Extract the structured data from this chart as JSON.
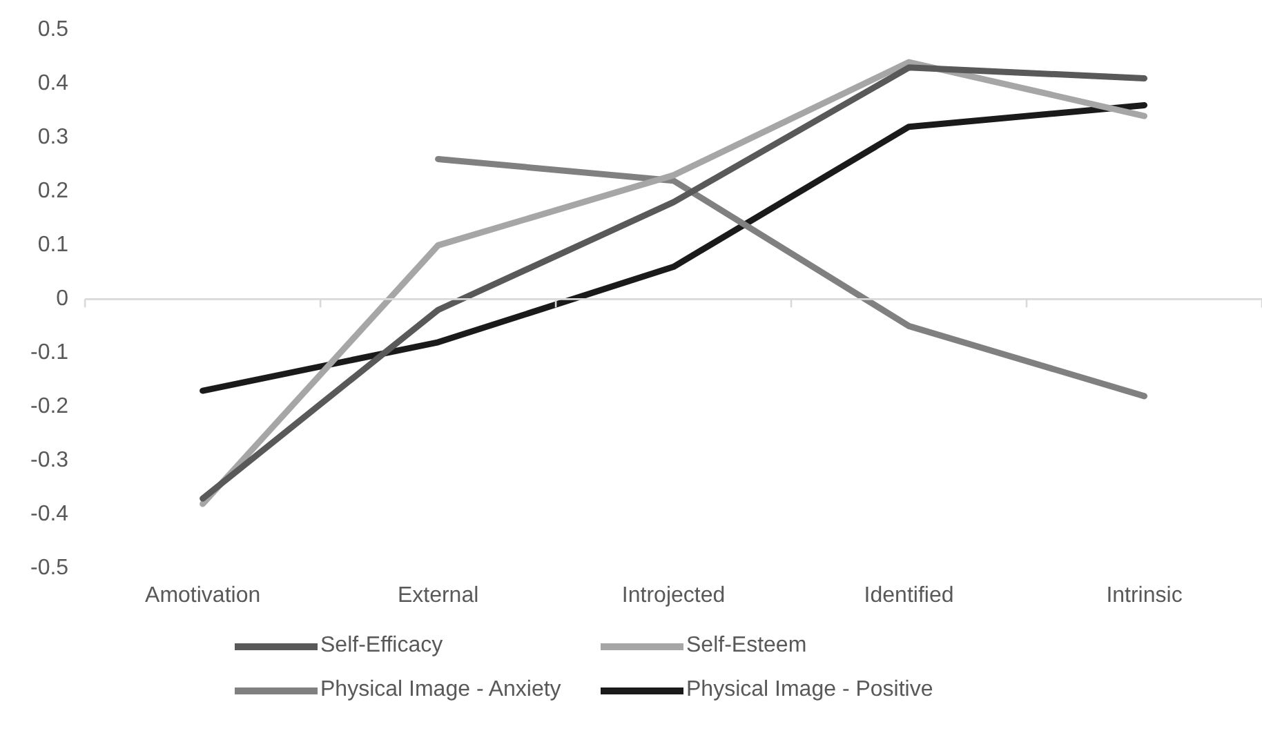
{
  "chart_data": {
    "type": "line",
    "categories": [
      "Amotivation",
      "External",
      "Introjected",
      "Identified",
      "Intrinsic"
    ],
    "series": [
      {
        "name": "Self-Efficacy",
        "color": "#595959",
        "values": [
          -0.37,
          -0.02,
          0.18,
          0.43,
          0.41
        ]
      },
      {
        "name": "Self-Esteem",
        "color": "#a6a6a6",
        "values": [
          -0.38,
          0.1,
          0.23,
          0.44,
          0.34
        ]
      },
      {
        "name": "Physical Image - Anxiety",
        "color": "#808080",
        "values": [
          null,
          0.26,
          0.22,
          -0.05,
          -0.18
        ]
      },
      {
        "name": "Physical Image - Positive",
        "color": "#1a1a1a",
        "values": [
          -0.17,
          -0.08,
          0.06,
          0.32,
          0.36
        ]
      }
    ],
    "ylim": [
      -0.5,
      0.5
    ],
    "yticks": [
      -0.5,
      -0.4,
      -0.3,
      -0.2,
      -0.1,
      0,
      0.1,
      0.2,
      0.3,
      0.4,
      0.5
    ],
    "ref_lines": [
      {
        "axis": "y",
        "value": 0,
        "color": "#d9d9d9"
      }
    ],
    "grid": false,
    "legend": "bottom",
    "marker": "none",
    "line_style": "solid"
  }
}
